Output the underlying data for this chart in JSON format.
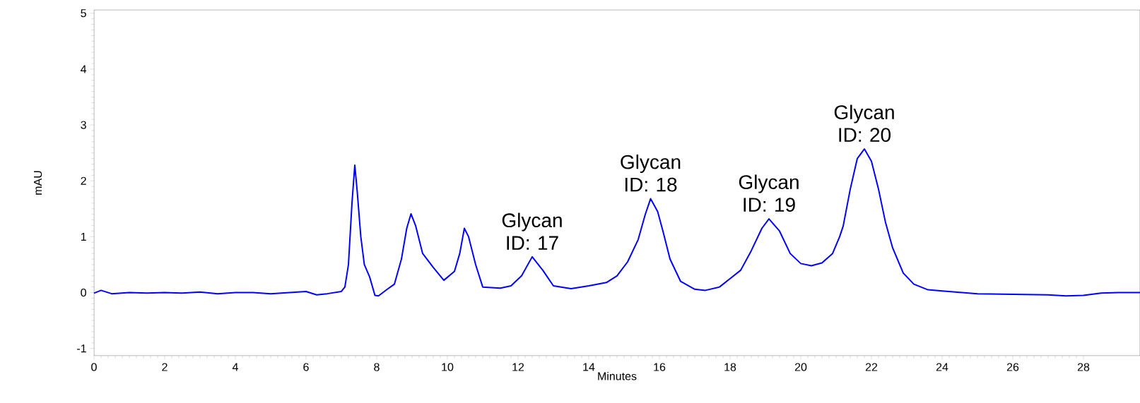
{
  "chart_data": {
    "type": "line",
    "xlabel": "Minutes",
    "ylabel": "mAU",
    "xlim": [
      0,
      29.6
    ],
    "ylim": [
      -1.13,
      5.06
    ],
    "xticks": [
      0,
      2,
      4,
      6,
      8,
      10,
      12,
      14,
      16,
      18,
      20,
      22,
      24,
      26,
      28
    ],
    "yticks": [
      -1,
      0,
      1,
      2,
      3,
      4,
      5
    ],
    "grid": false,
    "marker": "none",
    "line_style": "solid",
    "series": [
      {
        "color": "#0000ff",
        "x": [
          0,
          0.2,
          0.5,
          1,
          1.5,
          2,
          2.5,
          3,
          3.5,
          4,
          4.5,
          5,
          5.5,
          6,
          6.3,
          6.6,
          7,
          7.1,
          7.2,
          7.3,
          7.38,
          7.45,
          7.55,
          7.65,
          7.8,
          7.95,
          8.05,
          8.3,
          8.5,
          8.7,
          8.85,
          8.97,
          9.1,
          9.3,
          9.6,
          9.9,
          10.2,
          10.35,
          10.48,
          10.6,
          10.8,
          11,
          11.5,
          11.8,
          12.1,
          12.4,
          12.7,
          13,
          13.5,
          14,
          14.5,
          14.8,
          15.1,
          15.4,
          15.6,
          15.75,
          15.95,
          16.1,
          16.3,
          16.6,
          17,
          17.3,
          17.7,
          18,
          18.3,
          18.6,
          18.9,
          19.1,
          19.4,
          19.7,
          20,
          20.3,
          20.6,
          20.9,
          21.1,
          21.2,
          21.4,
          21.6,
          21.8,
          22,
          22.2,
          22.4,
          22.6,
          22.9,
          23.2,
          23.6,
          24,
          25,
          26,
          27,
          27.5,
          28,
          28.5,
          29,
          29.6
        ],
        "values": [
          -0.01,
          0.04,
          -0.02,
          0,
          -0.01,
          0,
          -0.01,
          0.01,
          -0.02,
          0,
          0,
          -0.02,
          0,
          0.02,
          -0.04,
          -0.02,
          0.02,
          0.1,
          0.5,
          1.6,
          2.28,
          1.8,
          1.0,
          0.5,
          0.28,
          -0.05,
          -0.06,
          0.06,
          0.15,
          0.6,
          1.15,
          1.41,
          1.2,
          0.7,
          0.45,
          0.22,
          0.38,
          0.7,
          1.15,
          1.0,
          0.5,
          0.1,
          0.08,
          0.12,
          0.3,
          0.64,
          0.4,
          0.12,
          0.07,
          0.12,
          0.18,
          0.3,
          0.55,
          0.95,
          1.4,
          1.68,
          1.45,
          1.1,
          0.6,
          0.2,
          0.06,
          0.04,
          0.1,
          0.25,
          0.4,
          0.75,
          1.15,
          1.32,
          1.1,
          0.7,
          0.52,
          0.48,
          0.53,
          0.7,
          1.0,
          1.19,
          1.85,
          2.4,
          2.57,
          2.35,
          1.85,
          1.25,
          0.8,
          0.35,
          0.15,
          0.05,
          0.03,
          -0.02,
          -0.03,
          -0.04,
          -0.06,
          -0.05,
          -0.01,
          0,
          0
        ]
      }
    ],
    "annotations": [
      {
        "text": "Glycan ID: 17",
        "x": 12.4,
        "y": 0.64
      },
      {
        "text": "Glycan ID: 18",
        "x": 15.75,
        "y": 1.68
      },
      {
        "text": "Glycan ID: 19",
        "x": 19.1,
        "y": 1.32
      },
      {
        "text": "Glycan ID: 20",
        "x": 21.8,
        "y": 2.57
      }
    ]
  }
}
